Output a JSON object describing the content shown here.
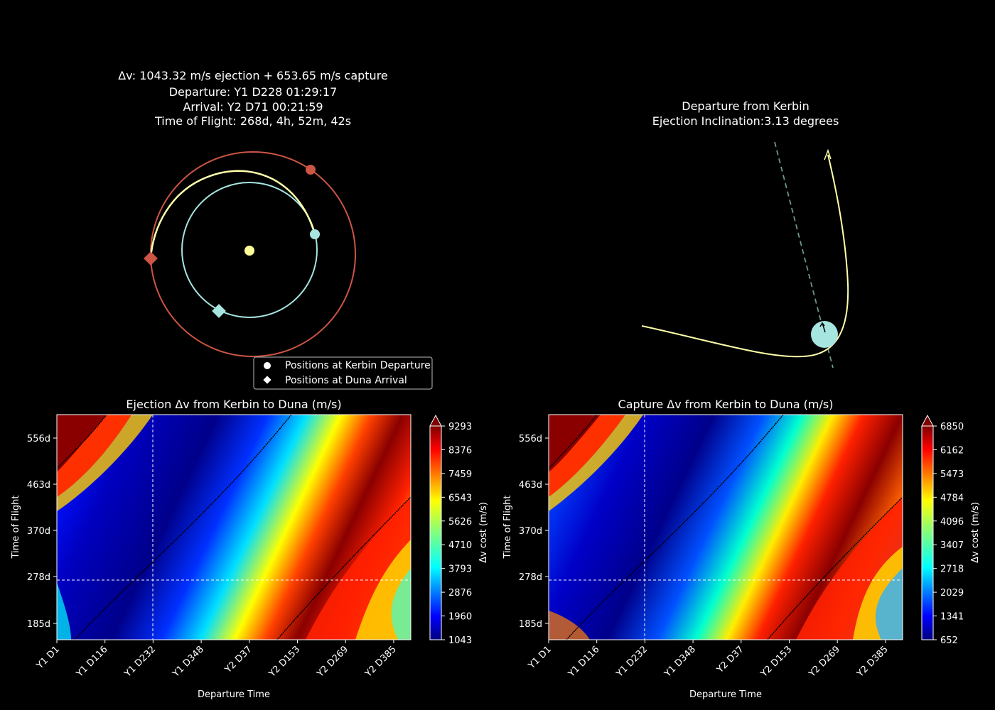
{
  "chart_data": [
    {
      "type": "orbit-diagram",
      "title_lines": [
        "Δv: 1043.32 m/s ejection + 653.65 m/s capture",
        "Departure: Y1 D228 01:29:17",
        "Arrival: Y2 D71 00:21:59",
        "Time of Flight: 268d, 4h, 52m, 42s"
      ],
      "legend": [
        {
          "label": "Positions at Kerbin Departure",
          "marker": "circle"
        },
        {
          "label": "Positions at Duna Arrival",
          "marker": "diamond"
        }
      ],
      "legend_position": "lower-right",
      "colors": {
        "sun": "#ffff99",
        "kerbin": "#a6e5e0",
        "duna": "#cc5544",
        "transfer": "#ffffaa"
      }
    },
    {
      "type": "trajectory",
      "title_lines": [
        "Departure from Kerbin",
        "Ejection Inclination:3.13 degrees"
      ],
      "inclination_deg": 3.13,
      "colors": {
        "planet": "#a6e5e0",
        "trajectory": "#ffffaa",
        "dashed": "#6a9a80"
      }
    },
    {
      "type": "heatmap",
      "title": "Ejection Δv from Kerbin to Duna (m/s)",
      "xlabel": "Departure Time",
      "ylabel": "Time of Flight",
      "x_ticks": [
        "Y1 D1",
        "Y1 D116",
        "Y1 D232",
        "Y1 D348",
        "Y2 D37",
        "Y2 D153",
        "Y2 D269",
        "Y2 D385"
      ],
      "y_ticks": [
        "185d",
        "278d",
        "370d",
        "463d",
        "556d"
      ],
      "colorbar_label": "Δv cost (m/s)",
      "colorbar_ticks": [
        "1043",
        "1960",
        "2876",
        "3793",
        "4710",
        "5626",
        "6543",
        "7459",
        "8376",
        "9293"
      ],
      "vmin": 1043,
      "vmax": 9293,
      "selected_departure": "Y1 D228",
      "selected_tof_days": 268
    },
    {
      "type": "heatmap",
      "title": "Capture Δv from Kerbin to Duna (m/s)",
      "xlabel": "Departure Time",
      "ylabel": "Time of Flight",
      "x_ticks": [
        "Y1 D1",
        "Y1 D116",
        "Y1 D232",
        "Y1 D348",
        "Y2 D37",
        "Y2 D153",
        "Y2 D269",
        "Y2 D385"
      ],
      "y_ticks": [
        "185d",
        "278d",
        "370d",
        "463d",
        "556d"
      ],
      "colorbar_label": "Δv cost (m/s)",
      "colorbar_ticks": [
        "652",
        "1341",
        "2029",
        "2718",
        "3407",
        "4096",
        "4784",
        "5473",
        "6162",
        "6850"
      ],
      "vmin": 652,
      "vmax": 6850,
      "selected_departure": "Y1 D228",
      "selected_tof_days": 268
    }
  ]
}
